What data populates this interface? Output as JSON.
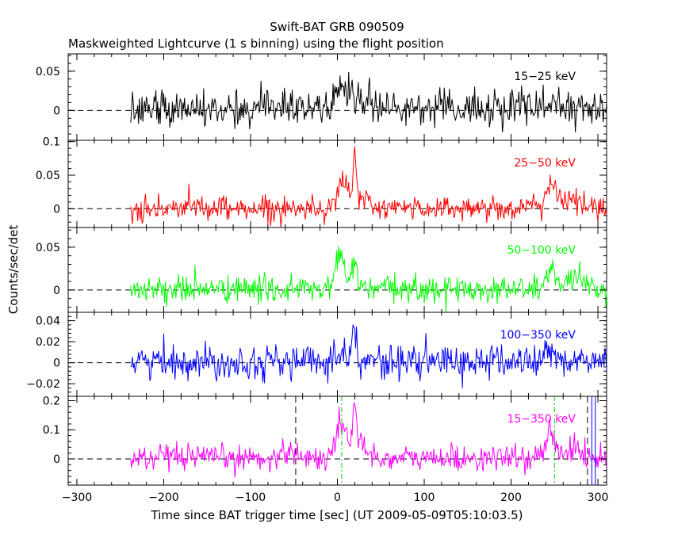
{
  "chart_data": {
    "type": "line",
    "title": "Swift-BAT GRB 090509",
    "subtitle": "Maskweighted Lightcurve (1 s binning) using the flight position",
    "xlabel": "Time since BAT trigger time [sec] (UT 2009-05-09T05:10:03.5)",
    "ylabel": "Counts/sec/det",
    "xlim": [
      -310,
      310
    ],
    "x_ticks": [
      -300,
      -200,
      -100,
      0,
      100,
      200,
      300
    ],
    "x_tick_labels": [
      "−300",
      "−200",
      "−100",
      "0",
      "100",
      "200",
      "300"
    ],
    "grid": false,
    "data_range_x": [
      -238,
      310
    ],
    "panels": [
      {
        "name": "15−25 keV",
        "color": "#000000",
        "ylim": [
          -0.038,
          0.072
        ],
        "y_ticks": [
          0,
          0.05
        ],
        "y_tick_labels": [
          "0",
          "0.05"
        ],
        "noise_sigma": 0.012,
        "baseline": 0.002,
        "peaks": [
          {
            "t": 5,
            "amp": 0.03,
            "width": 6
          },
          {
            "t": 20,
            "amp": 0.015,
            "width": 10
          },
          {
            "t": 118,
            "amp": 0.02,
            "width": 1
          },
          {
            "t": 245,
            "amp": 0.01,
            "width": 10
          }
        ],
        "vlines": []
      },
      {
        "name": "25−50 keV",
        "color": "#ff0000",
        "ylim": [
          -0.028,
          0.102
        ],
        "y_ticks": [
          0,
          0.05,
          0.1
        ],
        "y_tick_labels": [
          "0",
          "0.05",
          "0.1"
        ],
        "noise_sigma": 0.009,
        "baseline": 0.001,
        "peaks": [
          {
            "t": 5,
            "amp": 0.04,
            "width": 6
          },
          {
            "t": 20,
            "amp": 0.075,
            "width": 1.5
          },
          {
            "t": 25,
            "amp": 0.015,
            "width": 8
          },
          {
            "t": 245,
            "amp": 0.03,
            "width": 6
          },
          {
            "t": 265,
            "amp": 0.012,
            "width": 15
          }
        ],
        "vlines": []
      },
      {
        "name": "50−100 keV",
        "color": "#00ff00",
        "ylim": [
          -0.026,
          0.073
        ],
        "y_ticks": [
          0,
          0.05
        ],
        "y_tick_labels": [
          "0",
          "0.05"
        ],
        "noise_sigma": 0.008,
        "baseline": 0.001,
        "peaks": [
          {
            "t": 3,
            "amp": 0.04,
            "width": 5
          },
          {
            "t": 20,
            "amp": 0.035,
            "width": 3
          },
          {
            "t": 245,
            "amp": 0.02,
            "width": 5
          },
          {
            "t": 270,
            "amp": 0.008,
            "width": 15
          }
        ],
        "vlines": []
      },
      {
        "name": "100−350 keV",
        "color": "#0000ff",
        "ylim": [
          -0.032,
          0.048
        ],
        "y_ticks": [
          -0.02,
          0,
          0.02,
          0.04
        ],
        "y_tick_labels": [
          "−0.02",
          "0",
          "0.02",
          "0.04"
        ],
        "noise_sigma": 0.008,
        "baseline": 0.001,
        "peaks": [
          {
            "t": 8,
            "amp": 0.012,
            "width": 8
          },
          {
            "t": 20,
            "amp": 0.03,
            "width": 2
          },
          {
            "t": 245,
            "amp": 0.01,
            "width": 6
          }
        ],
        "vlines": []
      },
      {
        "name": "15−350 keV",
        "color": "#ff00ff",
        "ylim": [
          -0.09,
          0.215
        ],
        "y_ticks": [
          0,
          0.1,
          0.2
        ],
        "y_tick_labels": [
          "0",
          "0.1",
          "0.2"
        ],
        "noise_sigma": 0.022,
        "baseline": 0.002,
        "peaks": [
          {
            "t": 5,
            "amp": 0.12,
            "width": 6
          },
          {
            "t": 20,
            "amp": 0.17,
            "width": 2
          },
          {
            "t": 25,
            "amp": 0.04,
            "width": 10
          },
          {
            "t": -55,
            "amp": 0.03,
            "width": 8
          },
          {
            "t": 245,
            "amp": 0.07,
            "width": 5
          },
          {
            "t": 265,
            "amp": 0.03,
            "width": 15
          }
        ],
        "vlines": [
          {
            "t": -48,
            "color": "#000000",
            "dash": "8,5"
          },
          {
            "t": 5,
            "color": "#00cc00",
            "dash": "6,3,2,3"
          },
          {
            "t": 250,
            "color": "#00cc00",
            "dash": "6,3,2,3"
          },
          {
            "t": 288,
            "color": "#000000",
            "dash": "8,5"
          },
          {
            "t": 293,
            "color": "#0000ff",
            "dash": ""
          },
          {
            "t": 297,
            "color": "#0000ff",
            "dash": ""
          }
        ]
      }
    ]
  }
}
